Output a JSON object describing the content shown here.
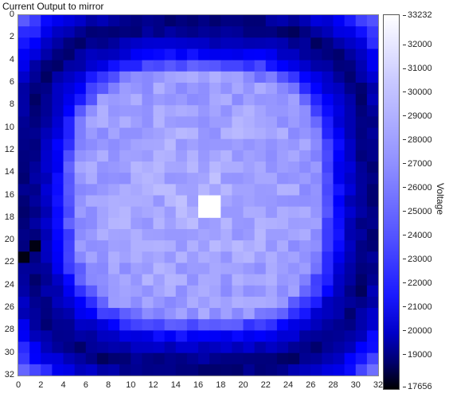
{
  "title": "Current Output to mirror",
  "colorbar": {
    "label": "Voltage",
    "ticks": [
      "33232",
      "32000",
      "31000",
      "30000",
      "29000",
      "28000",
      "27000",
      "26000",
      "25000",
      "24000",
      "23000",
      "22000",
      "21000",
      "20000",
      "19000",
      "17656"
    ],
    "min": 17656,
    "max": 33232
  },
  "chart_data": {
    "type": "heatmap",
    "title": "Current Output to mirror",
    "xlabel": "",
    "ylabel": "",
    "zlabel": "Voltage",
    "xlim": [
      0,
      32
    ],
    "ylim": [
      0,
      32
    ],
    "zlim": [
      17656,
      33232
    ],
    "x_ticks": [
      "0",
      "2",
      "4",
      "6",
      "8",
      "10",
      "12",
      "14",
      "16",
      "18",
      "20",
      "22",
      "24",
      "26",
      "28",
      "30",
      "32"
    ],
    "y_ticks": [
      "0",
      "2",
      "4",
      "6",
      "8",
      "10",
      "12",
      "14",
      "16",
      "18",
      "20",
      "22",
      "24",
      "26",
      "28",
      "30",
      "32"
    ],
    "grid_size": [
      32,
      32
    ],
    "colormap": [
      "#000000",
      "#0000ff",
      "#ffffff"
    ],
    "description_levels": {
      "center_peak": 33232,
      "inner_plateau": 30000,
      "outer_ring": 25000,
      "corner_edges": 20000
    }
  }
}
